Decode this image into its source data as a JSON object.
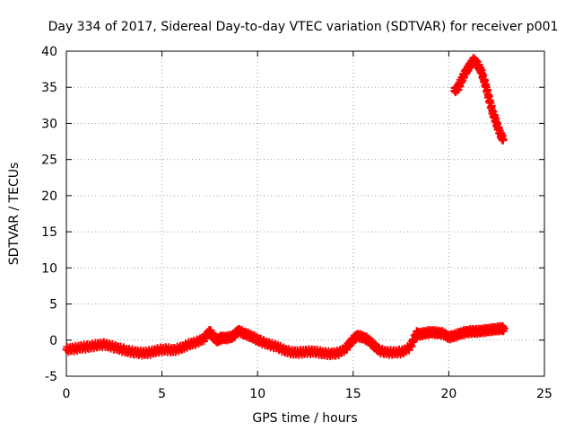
{
  "chart_data": {
    "type": "scatter",
    "title": "Day 334 of 2017, Sidereal Day-to-day VTEC variation (SDTVAR) for receiver p001",
    "xlabel": "GPS time / hours",
    "ylabel": "SDTVAR / TECUs",
    "xlim": [
      0,
      25
    ],
    "ylim": [
      -5,
      40
    ],
    "xticks": [
      0,
      5,
      10,
      15,
      20,
      25
    ],
    "yticks": [
      -5,
      0,
      5,
      10,
      15,
      20,
      25,
      30,
      35,
      40
    ],
    "grid": true,
    "series": [
      {
        "name": "SDTVAR",
        "color": "#ff0000",
        "marker": "plus",
        "x": [
          0.0,
          0.4,
          0.8,
          1.2,
          1.6,
          2.0,
          2.4,
          2.8,
          3.2,
          3.6,
          4.0,
          4.4,
          4.8,
          5.2,
          5.6,
          6.0,
          6.4,
          6.8,
          7.2,
          7.5,
          7.7,
          7.9,
          8.1,
          8.4,
          8.7,
          9.0,
          9.3,
          9.6,
          9.9,
          10.2,
          10.6,
          11.0,
          11.4,
          11.8,
          12.2,
          12.6,
          13.0,
          13.4,
          13.8,
          14.2,
          14.6,
          14.9,
          15.2,
          15.5,
          15.8,
          16.1,
          16.4,
          16.8,
          17.2,
          17.6,
          18.0,
          18.3,
          18.5,
          18.8,
          19.1,
          19.4,
          19.7,
          20.0,
          20.3,
          20.6,
          20.9,
          21.2,
          21.5,
          21.8,
          22.1,
          22.4,
          22.7,
          22.9
        ],
        "y": [
          -1.3,
          -1.2,
          -1.0,
          -0.9,
          -0.7,
          -0.6,
          -0.9,
          -1.2,
          -1.5,
          -1.7,
          -1.8,
          -1.7,
          -1.4,
          -1.3,
          -1.4,
          -1.1,
          -0.6,
          -0.3,
          0.2,
          1.2,
          0.4,
          0.0,
          0.3,
          0.3,
          0.5,
          1.3,
          0.9,
          0.6,
          0.2,
          -0.2,
          -0.6,
          -0.9,
          -1.4,
          -1.7,
          -1.7,
          -1.6,
          -1.6,
          -1.8,
          -1.9,
          -1.8,
          -1.2,
          -0.2,
          0.6,
          0.4,
          0.0,
          -0.8,
          -1.5,
          -1.7,
          -1.7,
          -1.6,
          -0.9,
          0.9,
          0.8,
          1.0,
          1.1,
          1.0,
          0.9,
          0.4,
          0.6,
          0.9,
          1.1,
          1.2,
          1.2,
          1.3,
          1.4,
          1.5,
          1.6,
          1.6
        ]
      },
      {
        "name": "SDTVAR-segment-2",
        "color": "#ff0000",
        "marker": "plus",
        "x": [
          20.3,
          20.5,
          20.7,
          20.9,
          21.1,
          21.3,
          21.5,
          21.7,
          21.9,
          22.1,
          22.3,
          22.5,
          22.7,
          22.85
        ],
        "y": [
          34.5,
          35.0,
          36.2,
          37.2,
          38.0,
          38.8,
          38.2,
          37.2,
          35.5,
          33.5,
          31.5,
          30.0,
          28.5,
          27.8
        ]
      }
    ]
  }
}
